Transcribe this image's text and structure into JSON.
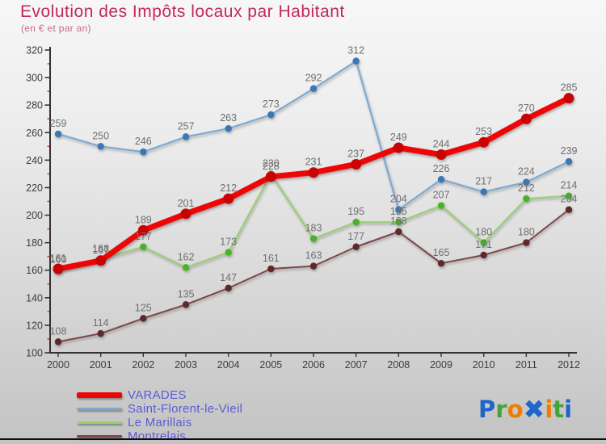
{
  "title": "Evolution des Impôts locaux par Habitant",
  "subtitle": "(en € et par an)",
  "chart_data": {
    "type": "line",
    "x": [
      2000,
      2001,
      2002,
      2003,
      2004,
      2005,
      2006,
      2007,
      2008,
      2009,
      2010,
      2011,
      2012
    ],
    "series": [
      {
        "name": "VARADES",
        "color": "#ee0505",
        "dot_color": "#c90303",
        "line_width": 7,
        "values": [
          161,
          167,
          189,
          201,
          212,
          228,
          231,
          237,
          249,
          244,
          253,
          270,
          285
        ]
      },
      {
        "name": "Saint-Florent-le-Vieil",
        "color": "#7aa8d2",
        "dot_color": "#3b77b2",
        "line_width": 2,
        "values": [
          259,
          250,
          246,
          257,
          263,
          273,
          292,
          312,
          204,
          226,
          217,
          224,
          239
        ]
      },
      {
        "name": "Le Marillais",
        "color": "#97d170",
        "dot_color": "#49b228",
        "line_width": 2,
        "values": [
          160,
          168,
          177,
          162,
          173,
          230,
          183,
          195,
          195,
          207,
          180,
          212,
          214
        ]
      },
      {
        "name": "Montrelais",
        "color": "#7d4747",
        "dot_color": "#5e2929",
        "line_width": 2,
        "values": [
          108,
          114,
          125,
          135,
          147,
          161,
          163,
          177,
          188,
          165,
          171,
          180,
          204
        ]
      }
    ],
    "xlabel": "",
    "ylabel": "",
    "ylim": [
      100,
      320
    ],
    "ytick_step": 20,
    "grid": false,
    "legend_position": "bottom-left"
  },
  "logo": {
    "text": "Proxiti",
    "letters": [
      {
        "ch": "P",
        "color": "#2065c9",
        "big": false
      },
      {
        "ch": "r",
        "color": "#44a43a",
        "big": false
      },
      {
        "ch": "o",
        "color": "#ef7d00",
        "big": false
      },
      {
        "ch": "✖",
        "color": "#2065c9",
        "big": true
      },
      {
        "ch": "i",
        "color": "#ef7d00",
        "big": false
      },
      {
        "ch": "t",
        "color": "#44a43a",
        "big": false
      },
      {
        "ch": "i",
        "color": "#2065c9",
        "big": false
      }
    ]
  },
  "colors": {
    "title": "#c2295a",
    "subtitle": "#c96a85",
    "legend_text": "#5b5bd6",
    "axis": "#333333",
    "minor_tick": "#cc3b3b",
    "value_label": "#6f6f6f",
    "tick_label": "#3c3c3c"
  }
}
